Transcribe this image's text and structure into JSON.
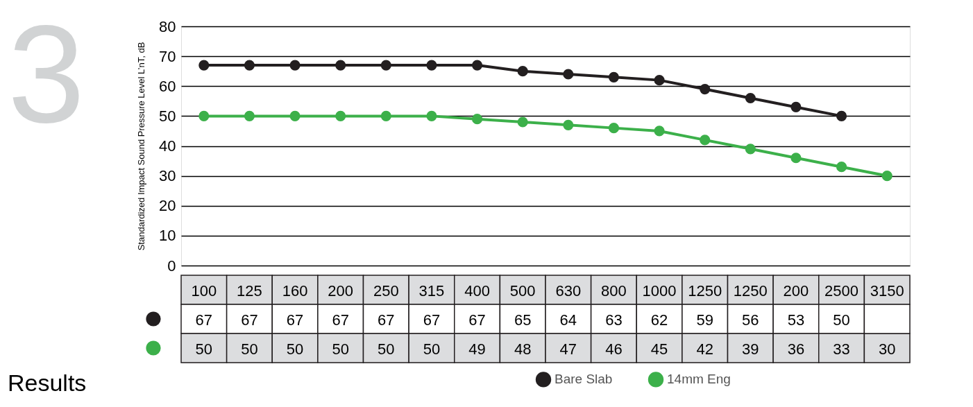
{
  "chart_data": {
    "type": "line",
    "ylabel": "Standardized Impact Sound Pressure Level L’nT, dB",
    "categories": [
      "100",
      "125",
      "160",
      "200",
      "250",
      "315",
      "400",
      "500",
      "630",
      "800",
      "1000",
      "1250",
      "1250",
      "200",
      "2500",
      "3150"
    ],
    "series": [
      {
        "name": "Bare Slab",
        "color": "#231f20",
        "values": [
          67,
          67,
          67,
          67,
          67,
          67,
          67,
          65,
          64,
          63,
          62,
          59,
          56,
          53,
          50,
          null
        ]
      },
      {
        "name": "14mm Eng",
        "color": "#3cb04a",
        "values": [
          50,
          50,
          50,
          50,
          50,
          50,
          49,
          48,
          47,
          46,
          45,
          42,
          39,
          36,
          33,
          30
        ]
      }
    ],
    "ylim": [
      0,
      80
    ],
    "yticks": [
      0,
      10,
      20,
      30,
      40,
      50,
      60,
      70,
      80
    ],
    "grid": "y",
    "marker": "circle",
    "line_style": "solid",
    "data_labels": true,
    "legend": "bottom right",
    "annotations": [
      "3",
      "Results"
    ]
  }
}
